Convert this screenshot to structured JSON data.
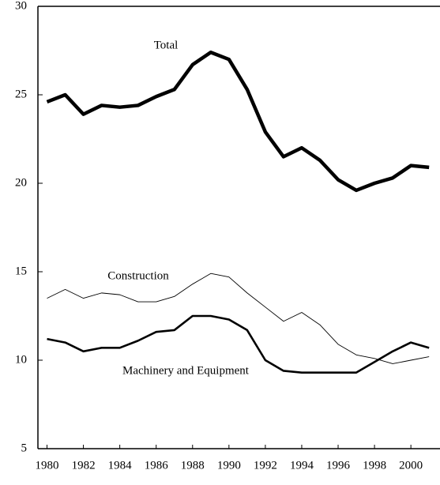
{
  "chart_data": {
    "type": "line",
    "x": [
      1980,
      1981,
      1982,
      1983,
      1984,
      1985,
      1986,
      1987,
      1988,
      1989,
      1990,
      1991,
      1992,
      1993,
      1994,
      1995,
      1996,
      1997,
      1998,
      1999,
      2000,
      2001
    ],
    "series": [
      {
        "name": "Total",
        "color": "#000000",
        "values": [
          24.6,
          25.0,
          23.9,
          24.4,
          24.3,
          24.4,
          24.9,
          25.3,
          26.7,
          27.4,
          27.0,
          25.3,
          22.9,
          21.5,
          22.0,
          21.3,
          20.2,
          19.6,
          20.0,
          20.3,
          21.0,
          20.9
        ]
      },
      {
        "name": "Construction",
        "color": "#000000",
        "values": [
          13.5,
          14.0,
          13.5,
          13.8,
          13.7,
          13.3,
          13.3,
          13.6,
          14.3,
          14.9,
          14.7,
          13.8,
          13.0,
          12.2,
          12.7,
          12.0,
          10.9,
          10.3,
          10.1,
          9.8,
          10.0,
          10.2
        ]
      },
      {
        "name": "Machinery and Equipment",
        "color": "#000000",
        "values": [
          11.2,
          11.0,
          10.5,
          10.7,
          10.7,
          11.1,
          11.6,
          11.7,
          12.5,
          12.5,
          12.3,
          11.7,
          10.0,
          9.4,
          9.3,
          9.3,
          9.3,
          9.3,
          9.9,
          10.5,
          11.0,
          10.7
        ]
      }
    ],
    "xlim": [
      1979.5,
      2001.6
    ],
    "xticks": [
      1980,
      1982,
      1984,
      1986,
      1988,
      1990,
      1992,
      1994,
      1996,
      1998,
      2000
    ],
    "ylim": [
      5,
      30
    ],
    "yticks": [
      5,
      10,
      15,
      20,
      25,
      30
    ],
    "grid": false
  }
}
